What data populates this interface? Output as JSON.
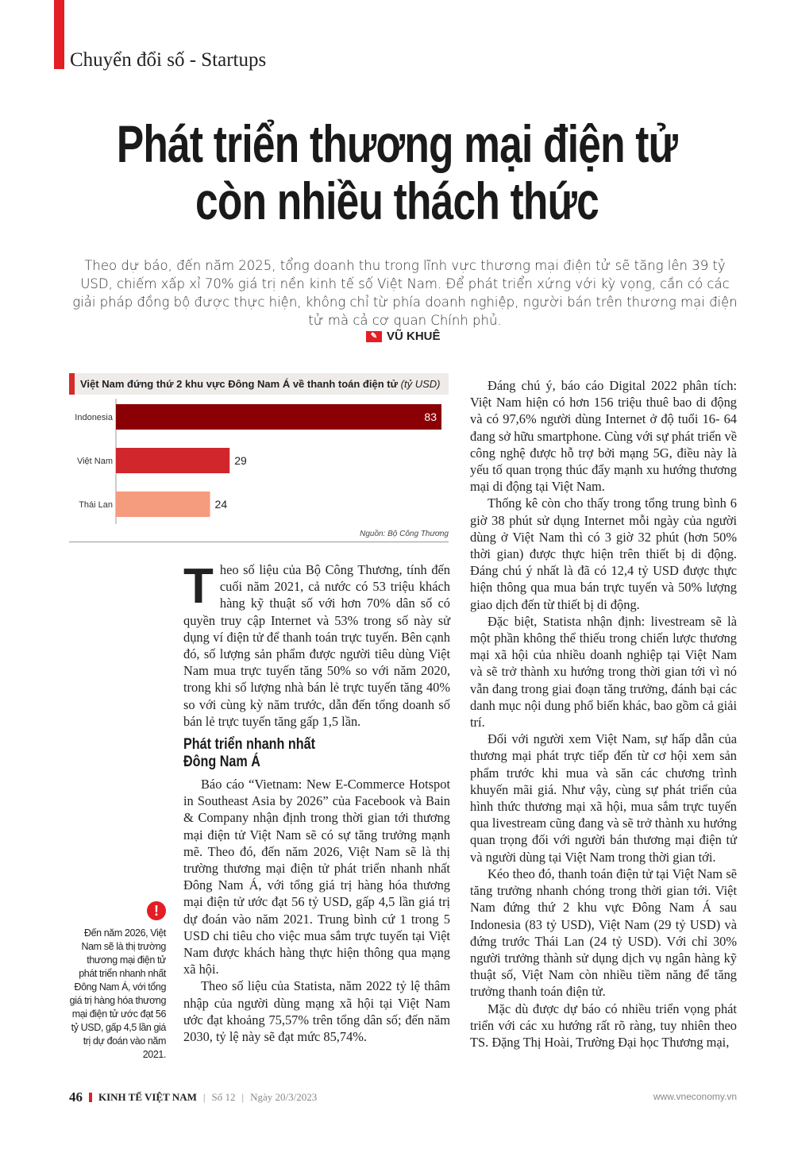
{
  "header": {
    "section": "Chuyển đổi số - Startups"
  },
  "title": [
    "Phát triển thương mại điện tử",
    "còn nhiều thách thức"
  ],
  "lead": "Theo dự báo, đến năm 2025, tổng doanh thu trong lĩnh vực thương mại điện tử sẽ tăng lên 39 tỷ USD, chiếm xấp xỉ 70% giá trị nền kinh tế số Việt Nam. Để phát triển xứng với kỳ vọng, cần có các giải pháp đồng bộ được thực hiện, không chỉ từ phía doanh nghiệp, người bán trên thương mại điện tử mà cả cơ quan Chính phủ.",
  "author": "VŨ KHUÊ",
  "chart_data": {
    "type": "bar",
    "orientation": "horizontal",
    "title": "Việt Nam đứng thứ 2 khu vực Đông Nam Á về thanh toán điện tử",
    "unit": "(tỷ USD)",
    "categories": [
      "Indonesia",
      "Việt Nam",
      "Thái Lan"
    ],
    "values": [
      83,
      29,
      24
    ],
    "colors": [
      "#8b0005",
      "#d0262c",
      "#f59b7e"
    ],
    "source": "Nguồn: Bộ Công Thương"
  },
  "left": {
    "drop": "T",
    "p1": "heo số liệu của Bộ Công Thương, tính đến cuối năm 2021, cả nước có 53 triệu khách hàng kỹ thuật số với hơn 70% dân số có quyền truy cập Internet và 53% trong số này sử dụng ví điện tử để thanh toán trực tuyến. Bên cạnh đó, số lượng sản phẩm được người tiêu dùng Việt Nam mua trực tuyến tăng 50% so với năm 2020, trong khi số lượng nhà bán lẻ trực tuyến tăng 40% so với cùng kỳ năm trước, dẫn đến tổng doanh số bán lẻ trực tuyến tăng gấp 1,5 lần.",
    "subhead": [
      "Phát triển nhanh nhất",
      "Đông Nam Á"
    ],
    "p2": "Báo cáo “Vietnam: New E-Commerce Hotspot in Southeast Asia by 2026” của Facebook và Bain & Company nhận định trong thời gian tới thương mại điện tử Việt Nam sẽ có sự tăng trưởng mạnh mẽ. Theo đó, đến năm 2026, Việt Nam sẽ là thị trường thương mại điện tử phát triển nhanh nhất Đông Nam Á, với tổng giá trị hàng hóa thương mại điện tử ước đạt 56 tỷ USD, gấp 4,5 lần giá trị dự đoán vào năm 2021. Trung bình cứ 1 trong 5 USD chi tiêu cho việc mua sắm trực tuyến tại Việt Nam được khách hàng thực hiện thông qua mạng xã hội.",
    "p3": "Theo số liệu của Statista, năm 2022 tỷ lệ thâm nhập của người dùng mạng xã hội tại Việt Nam ước đạt khoảng 75,57% trên tổng dân số; đến năm 2030, tỷ lệ này sẽ đạt mức 85,74%."
  },
  "sidebar": "Đến năm 2026, Việt Nam sẽ là thị trường thương mại điện tử phát triển nhanh nhất Đông Nam Á, với tổng giá trị hàng hóa thương mại điện tử ước đạt 56 tỷ USD, gấp 4,5 lần giá trị dự đoán vào năm 2021.",
  "right": [
    "Đáng chú ý, báo cáo Digital 2022 phân tích: Việt Nam hiện có hơn 156 triệu thuê bao di động và có 97,6% người dùng Internet ở độ tuổi 16- 64 đang sở hữu smartphone. Cùng với sự phát triển về công nghệ được hỗ trợ bởi mạng 5G, điều này là yếu tố quan trọng thúc đẩy mạnh xu hướng thương mại di động tại Việt Nam.",
    "Thống kê còn cho thấy trong tổng trung bình 6 giờ 38 phút sử dụng Internet mỗi ngày của người dùng ở Việt Nam thì có 3 giờ 32 phút (hơn 50% thời gian) được thực hiện trên thiết bị di động. Đáng chú ý nhất là đã có 12,4 tỷ USD được thực hiện thông qua mua bán trực tuyến và 50% lượng giao dịch đến từ thiết bị di động.",
    "Đặc biệt, Statista nhận định: livestream sẽ là một phần không thể thiếu trong chiến lược thương mại xã hội của nhiều doanh nghiệp tại Việt Nam và sẽ trở thành xu hướng trong thời gian tới vì nó vẫn đang trong giai đoạn tăng trưởng, đánh bại các danh mục nội dung phổ biến khác, bao gồm cả giải trí.",
    "Đối với người xem Việt Nam, sự hấp dẫn của thương mại phát trực tiếp đến từ cơ hội xem sản phẩm trước khi mua và săn các chương trình khuyến mãi giá. Như vậy, cùng sự phát triển của hình thức thương mại xã hội, mua sắm trực tuyến qua livestream cũng đang và sẽ trở thành xu hướng quan trọng đối với người bán thương mại điện tử và người dùng tại Việt Nam trong thời gian tới.",
    "Kéo theo đó, thanh toán điện tử tại Việt Nam sẽ tăng trưởng nhanh chóng trong thời gian tới. Việt Nam đứng thứ 2 khu vực Đông Nam Á sau Indonesia (83 tỷ USD), Việt Nam (29 tỷ USD) và đứng trước Thái Lan (24 tỷ USD). Với chỉ 30% người trưởng thành sử dụng dịch vụ ngân hàng kỹ thuật số, Việt Nam còn nhiều tiềm năng để tăng trưởng thanh toán điện tử.",
    "Mặc dù được dự báo có nhiều triển vọng phát triển với các xu hướng rất rõ ràng, tuy nhiên theo TS. Đặng Thị Hoài, Trường Đại học Thương mại,"
  ],
  "footer": {
    "page": "46",
    "magazine": "KINH TẾ VIỆT NAM",
    "issue": "Số 12",
    "date": "Ngày 20/3/2023",
    "url": "www.vneconomy.vn"
  }
}
